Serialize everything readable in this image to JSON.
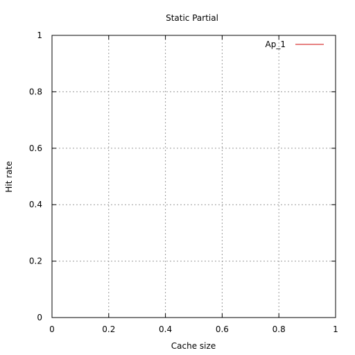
{
  "chart_data": {
    "type": "line",
    "title": "Static Partial",
    "xlabel": "Cache size",
    "ylabel": "Hit rate",
    "xlim": [
      0,
      1
    ],
    "ylim": [
      0,
      1
    ],
    "xticks": [
      "0",
      "0.2",
      "0.4",
      "0.6",
      "0.8",
      "1"
    ],
    "yticks": [
      "0",
      "0.2",
      "0.4",
      "0.6",
      "0.8",
      "1"
    ],
    "grid": true,
    "legend_position": "top-right",
    "series": [
      {
        "name": "Ap_1",
        "color": "#cc0000",
        "points": []
      }
    ]
  }
}
